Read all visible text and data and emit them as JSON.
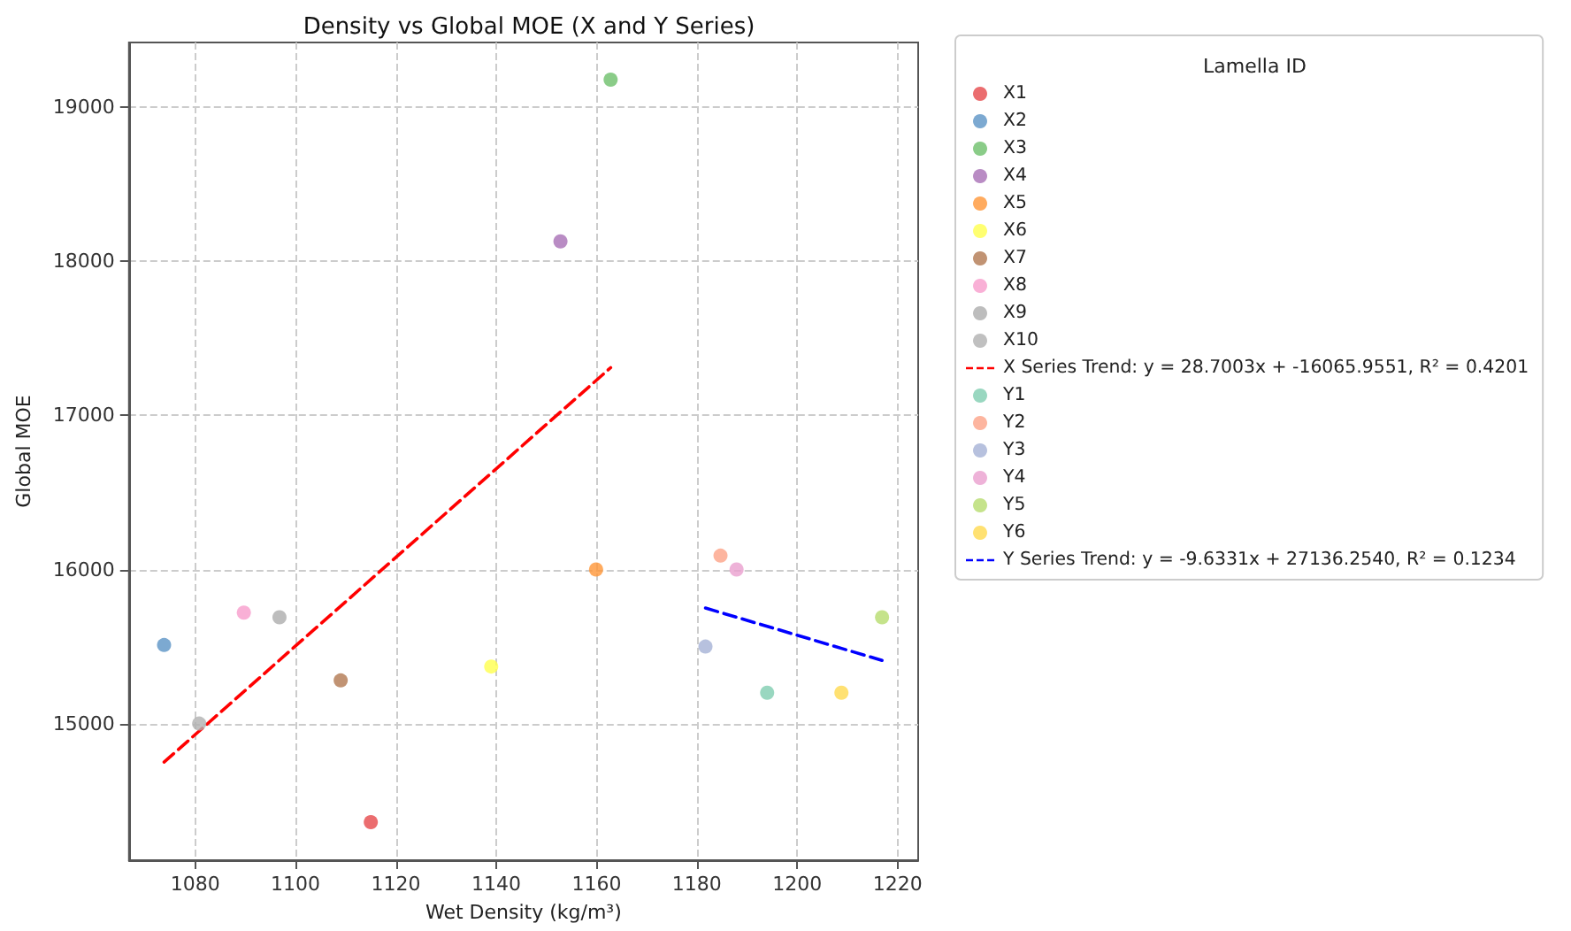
{
  "chart_data": {
    "type": "scatter",
    "title": "Density vs Global MOE (X and Y Series)",
    "xlabel": "Wet Density (kg/m³)",
    "ylabel": "Global MOE",
    "legend_title": "Lamella ID",
    "xlim": [
      1066.8,
      1224.1
    ],
    "xticks": [
      1080,
      1100,
      1120,
      1140,
      1160,
      1180,
      1200,
      1220
    ],
    "ylim": [
      14113,
      19421
    ],
    "yticks": [
      15000,
      16000,
      17000,
      18000,
      19000
    ],
    "grid": true,
    "legend": "right",
    "marker": "circle",
    "series": [
      {
        "name": "X1",
        "color": "#e6494b",
        "x": [
          1115.0
        ],
        "values": [
          14360
        ]
      },
      {
        "name": "X2",
        "color": "#5b93c6",
        "x": [
          1073.8
        ],
        "values": [
          15510
        ]
      },
      {
        "name": "X3",
        "color": "#6dbf6a",
        "x": [
          1162.8
        ],
        "values": [
          19180
        ]
      },
      {
        "name": "X4",
        "color": "#a86fb5",
        "x": [
          1152.8
        ],
        "values": [
          18130
        ]
      },
      {
        "name": "X5",
        "color": "#ff9637",
        "x": [
          1159.9
        ],
        "values": [
          16000
        ]
      },
      {
        "name": "X6",
        "color": "#ffff4d",
        "x": [
          1139.0
        ],
        "values": [
          15370
        ]
      },
      {
        "name": "X7",
        "color": "#b17850",
        "x": [
          1109.0
        ],
        "values": [
          15280
        ]
      },
      {
        "name": "X8",
        "color": "#f89ccc",
        "x": [
          1089.7
        ],
        "values": [
          15720
        ]
      },
      {
        "name": "X9",
        "color": "#adadad",
        "x": [
          1096.8
        ],
        "values": [
          15690
        ]
      },
      {
        "name": "X10",
        "color": "#b0b0b0",
        "x": [
          1080.8
        ],
        "values": [
          15000
        ]
      },
      {
        "name": "X Series Trend: y = 28.7003x + -16065.9551, R² = 0.4201",
        "type": "line",
        "color": "#ff0000",
        "line_style": "dashed",
        "marker": "none",
        "x": [
          1073.8,
          1162.8
        ],
        "values": [
          14750,
          17310
        ]
      },
      {
        "name": "Y1",
        "color": "#7fcdb0",
        "x": [
          1194.0
        ],
        "values": [
          15200
        ]
      },
      {
        "name": "Y2",
        "color": "#fca287",
        "x": [
          1184.7
        ],
        "values": [
          16090
        ]
      },
      {
        "name": "Y3",
        "color": "#a5b1d6",
        "x": [
          1181.7
        ],
        "values": [
          15500
        ]
      },
      {
        "name": "Y4",
        "color": "#ea9fce",
        "x": [
          1187.9
        ],
        "values": [
          16000
        ]
      },
      {
        "name": "Y5",
        "color": "#b6dc6e",
        "x": [
          1216.9
        ],
        "values": [
          15690
        ]
      },
      {
        "name": "Y6",
        "color": "#ffd94f",
        "x": [
          1208.8
        ],
        "values": [
          15200
        ]
      },
      {
        "name": "Y Series Trend: y = -9.6331x + 27136.2540, R² = 0.1234",
        "type": "line",
        "color": "#0000ff",
        "line_style": "dashed",
        "marker": "none",
        "x": [
          1181.7,
          1216.9
        ],
        "values": [
          15750,
          15410
        ]
      }
    ]
  }
}
